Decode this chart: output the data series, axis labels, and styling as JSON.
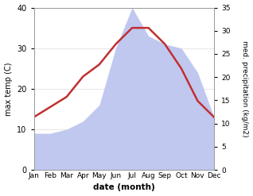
{
  "months": [
    "Jan",
    "Feb",
    "Mar",
    "Apr",
    "May",
    "Jun",
    "Jul",
    "Aug",
    "Sep",
    "Oct",
    "Nov",
    "Dec"
  ],
  "temperature": [
    13,
    15.5,
    18,
    23,
    26,
    31,
    35,
    35,
    31,
    25,
    17,
    13
  ],
  "precipitation": [
    9,
    9,
    10,
    12,
    16,
    30,
    40,
    33,
    31,
    30,
    24,
    13
  ],
  "temp_color": "#c03030",
  "precip_color": "#c0c8f0",
  "ylabel_left": "max temp (C)",
  "ylabel_right": "med. precipitation (kg/m2)",
  "xlabel": "date (month)",
  "ylim_left": [
    0,
    40
  ],
  "ylim_right": [
    0,
    35
  ],
  "yticks_left": [
    0,
    10,
    20,
    30,
    40
  ],
  "yticks_right": [
    0,
    5,
    10,
    15,
    20,
    25,
    30,
    35
  ],
  "background_color": "#ffffff"
}
